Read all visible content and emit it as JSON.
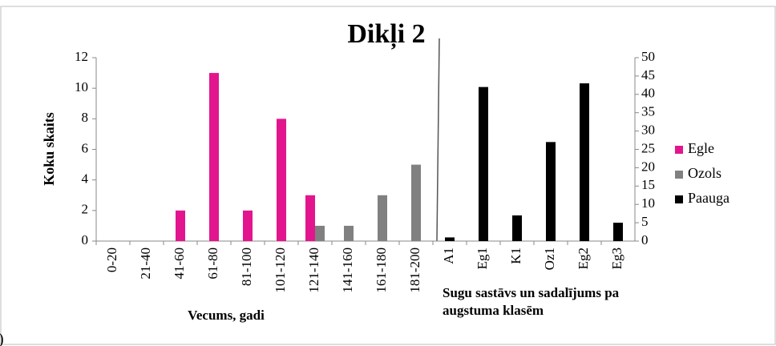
{
  "chart_data": {
    "type": "bar",
    "title": "Dikļi 2",
    "y_label": "Koku skaits",
    "x_label": "Vecums, gadi",
    "x2_label": [
      "Sugu sastāvs un sadalījums  pa",
      "augstuma klasēm"
    ],
    "annotation": ")",
    "categories": [
      "0-20",
      "21-40",
      "41-60",
      "61-80",
      "81-100",
      "101-120",
      "121-140",
      "141-160",
      "161-180",
      "181-200",
      "A1",
      "Eg1",
      "K1",
      "Oz1",
      "Eg2",
      "Eg3"
    ],
    "series": [
      {
        "name": "Egle",
        "color": "#e2158e",
        "values": [
          0,
          0,
          2,
          11,
          2,
          8,
          3,
          null,
          null,
          null,
          null,
          null,
          null,
          null,
          null,
          null
        ]
      },
      {
        "name": "Ozols",
        "color": "#808080",
        "values": [
          null,
          null,
          null,
          null,
          null,
          null,
          1,
          1,
          3,
          5,
          null,
          null,
          null,
          null,
          null,
          null
        ]
      },
      {
        "name": "Paauga",
        "color": "#000000",
        "axis": "y2",
        "values": [
          null,
          null,
          null,
          null,
          null,
          null,
          null,
          null,
          null,
          null,
          1,
          42,
          7,
          27,
          43,
          5
        ]
      }
    ],
    "ylim": [
      0,
      12
    ],
    "yticks": [
      0,
      2,
      4,
      6,
      8,
      10,
      12
    ],
    "y2lim": [
      0,
      50
    ],
    "y2ticks": [
      0,
      5,
      10,
      15,
      20,
      25,
      30,
      35,
      40,
      45,
      50
    ],
    "legend": "right"
  }
}
